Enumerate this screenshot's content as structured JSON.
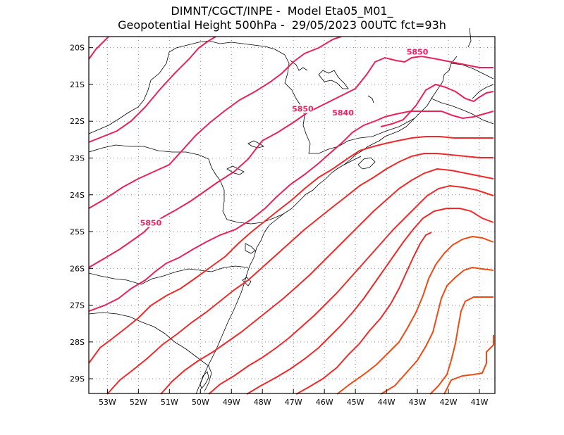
{
  "title": {
    "line1": "DIMNT/CGCT/INPE -  Model Eta05_M01_",
    "line2": "Geopotential Height 500hPa -  29/05/2023 00UTC fct=93h"
  },
  "map": {
    "lon_range": [
      -53.6,
      -40.5
    ],
    "lat_range": [
      -29.4,
      -19.7
    ],
    "grid": true,
    "x_ticks": [
      {
        "value": -53,
        "label": "53W"
      },
      {
        "value": -52,
        "label": "52W"
      },
      {
        "value": -51,
        "label": "51W"
      },
      {
        "value": -50,
        "label": "50W"
      },
      {
        "value": -49,
        "label": "49W"
      },
      {
        "value": -48,
        "label": "48W"
      },
      {
        "value": -47,
        "label": "47W"
      },
      {
        "value": -46,
        "label": "46W"
      },
      {
        "value": -45,
        "label": "45W"
      },
      {
        "value": -44,
        "label": "44W"
      },
      {
        "value": -43,
        "label": "43W"
      },
      {
        "value": -42,
        "label": "42W"
      },
      {
        "value": -41,
        "label": "41W"
      }
    ],
    "y_ticks": [
      {
        "value": -20,
        "label": "20S"
      },
      {
        "value": -21,
        "label": "21S"
      },
      {
        "value": -22,
        "label": "22S"
      },
      {
        "value": -23,
        "label": "23S"
      },
      {
        "value": -24,
        "label": "24S"
      },
      {
        "value": -25,
        "label": "25S"
      },
      {
        "value": -26,
        "label": "26S"
      },
      {
        "value": -27,
        "label": "27S"
      },
      {
        "value": -28,
        "label": "28S"
      },
      {
        "value": -29,
        "label": "29S"
      }
    ],
    "contour_labels": [
      {
        "text": "5850",
        "lon": -43.0,
        "lat": -20.15
      },
      {
        "text": "5850",
        "lon": -46.7,
        "lat": -21.7
      },
      {
        "text": "5840",
        "lon": -45.4,
        "lat": -21.8
      },
      {
        "text": "5850",
        "lon": -51.6,
        "lat": -24.8
      }
    ],
    "colors": {
      "contour_high": "#e8235a",
      "contour_mid": "#f02a2a",
      "contour_low": "#ee4a12",
      "coastline": "#000000",
      "grid": "#888888"
    }
  }
}
